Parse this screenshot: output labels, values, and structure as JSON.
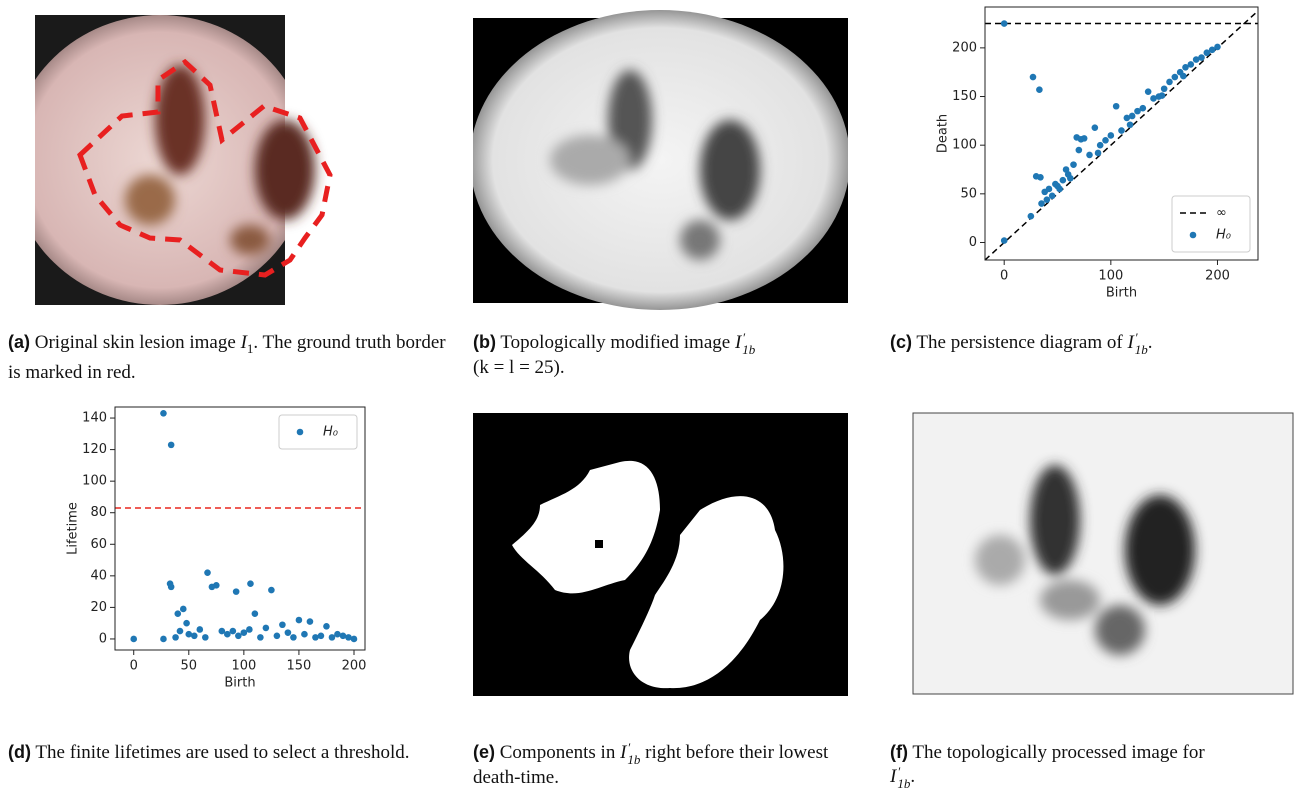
{
  "captions": [
    {
      "label": "(a)",
      "parts": [
        "Original skin lesion image ",
        "I",
        "1",
        ". The ground truth border is marked in red."
      ]
    },
    {
      "label": "(b)",
      "parts": [
        "Topologically modified image ",
        "I",
        "′",
        "1b",
        "(k = l = 25)."
      ]
    },
    {
      "label": "(c)",
      "parts": [
        "The persistence diagram of ",
        "I",
        "′",
        "1b",
        "."
      ]
    },
    {
      "label": "(d)",
      "parts": [
        "The finite lifetimes are used to select a threshold."
      ]
    },
    {
      "label": "(e)",
      "parts": [
        "Components in ",
        "I",
        "′",
        "1b",
        " right before their lowest death-time."
      ]
    },
    {
      "label": "(f)",
      "parts": [
        "The topologically processed image for ",
        "I",
        "′",
        "1b",
        "."
      ]
    }
  ],
  "chart_data": [
    {
      "type": "scatter",
      "x_label": "Birth",
      "y_label": "Death",
      "xlim": [
        -18,
        238
      ],
      "ylim": [
        -18,
        242
      ],
      "xticks": [
        0,
        100,
        200
      ],
      "yticks": [
        0,
        50,
        100,
        150,
        200
      ],
      "diagonal": true,
      "legend": "lower right",
      "series": [
        {
          "name": "∞",
          "color": "#000000",
          "style": "dashed",
          "y": 225
        },
        {
          "name": "H₀",
          "color": "#1f77b4",
          "x": [
            0,
            0,
            27,
            33,
            25,
            30,
            34,
            38,
            42,
            45,
            48,
            50,
            55,
            58,
            60,
            65,
            68,
            72,
            75,
            70,
            80,
            85,
            90,
            95,
            100,
            105,
            110,
            115,
            120,
            125,
            130,
            135,
            140,
            145,
            150,
            155,
            160,
            165,
            170,
            175,
            180,
            185,
            190,
            195,
            200,
            35,
            40,
            52,
            62,
            88,
            118,
            148,
            168
          ],
          "values": [
            225,
            2,
            170,
            157,
            27,
            68,
            67,
            52,
            55,
            48,
            60,
            58,
            64,
            75,
            70,
            80,
            108,
            106,
            107,
            95,
            90,
            118,
            100,
            105,
            110,
            140,
            115,
            128,
            130,
            135,
            138,
            155,
            148,
            150,
            158,
            165,
            170,
            175,
            180,
            183,
            188,
            190,
            195,
            198,
            201,
            40,
            44,
            55,
            66,
            92,
            121,
            151,
            171
          ]
        }
      ]
    },
    {
      "type": "scatter",
      "x_label": "Birth",
      "y_label": "Lifetime",
      "xlim": [
        -17,
        210
      ],
      "ylim": [
        -7,
        147
      ],
      "xticks": [
        0,
        50,
        100,
        150,
        200
      ],
      "yticks": [
        0,
        20,
        40,
        60,
        80,
        100,
        120,
        140
      ],
      "threshold": {
        "value": 83,
        "color": "#e8261f"
      },
      "legend": "upper right",
      "series": [
        {
          "name": "H₀",
          "color": "#1f77b4",
          "x": [
            0,
            27,
            34,
            27,
            33,
            34,
            67,
            106,
            125,
            93,
            75,
            71,
            40,
            45,
            48,
            110,
            150,
            160,
            175,
            60,
            80,
            120,
            140,
            185,
            195,
            200,
            55,
            65,
            85,
            95,
            100,
            115,
            130,
            145,
            155,
            165,
            170,
            180,
            190,
            42,
            50,
            38,
            105,
            135,
            90
          ],
          "values": [
            0,
            143,
            123,
            0,
            35,
            33,
            42,
            35,
            31,
            30,
            34,
            33,
            16,
            19,
            10,
            16,
            12,
            11,
            8,
            6,
            5,
            7,
            4,
            3,
            1,
            0,
            2,
            1,
            3,
            2,
            4,
            1,
            2,
            1,
            3,
            1,
            2,
            1,
            2,
            5,
            3,
            1,
            6,
            9,
            5
          ]
        }
      ]
    }
  ]
}
